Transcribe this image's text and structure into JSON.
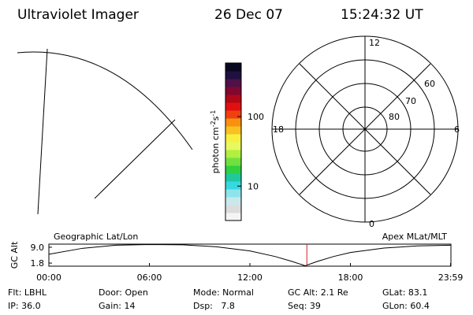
{
  "header": {
    "title": "Ultraviolet Imager",
    "date": "26 Dec 07",
    "time": "15:24:32 UT"
  },
  "colorbar": {
    "label": "photon cm",
    "exp1": "-2",
    "unit2": "s",
    "exp2": "-1",
    "lim": [
      3.2,
      590
    ],
    "log": true,
    "ticks": [
      10,
      100
    ],
    "colors": [
      "#f4f4f4",
      "#dcdcdc",
      "#c8e8ec",
      "#8ee4ec",
      "#38d8e0",
      "#20c8a0",
      "#30d040",
      "#70e040",
      "#b0f040",
      "#e8f860",
      "#f8f040",
      "#f8c020",
      "#f89010",
      "#f04010",
      "#e01010",
      "#b00818",
      "#800830",
      "#501048",
      "#201040",
      "#080820"
    ]
  },
  "polar": {
    "hour_labels": [
      "12",
      "6",
      "0",
      "18"
    ],
    "lat_labels": [
      "60",
      "70",
      "80"
    ]
  },
  "timeline": {
    "left_label": "Geographic Lat/Lon",
    "right_label": "Apex MLat/MLT",
    "ylabel": "GC Alt",
    "xlim": [
      0,
      24
    ],
    "ylim": [
      0.4,
      10.4
    ],
    "yticks": [
      {
        "value": 9,
        "label": "9.0"
      },
      {
        "value": 1.8,
        "label": "1.8"
      }
    ],
    "xticks": [
      {
        "value": 0,
        "label": "00:00"
      },
      {
        "value": 6,
        "label": "06:00"
      },
      {
        "value": 12,
        "label": "12:00"
      },
      {
        "value": 18,
        "label": "18:00"
      },
      {
        "value": 23.98,
        "label": "23:59"
      }
    ],
    "x": [
      0,
      2,
      4,
      6,
      8,
      10,
      12,
      13.5,
      14.5,
      15.3,
      16,
      17,
      18,
      20,
      22,
      24
    ],
    "values": [
      5.8,
      8.5,
      9.9,
      10.2,
      10.1,
      9.2,
      7.3,
      4.8,
      2.6,
      0.6,
      2.5,
      4.8,
      6.6,
      8.6,
      9.6,
      9.9
    ],
    "marker": 15.4,
    "marker_color": "#d02020"
  },
  "status": [
    [
      "Flt: LBHL",
      "IP: 36.0"
    ],
    [
      "Door: Open",
      "Gain: 14"
    ],
    [
      "Mode: Normal",
      "Dsp:   7.8"
    ],
    [
      "GC Alt: 2.1 Re",
      "Seq: 39"
    ],
    [
      "GLat: 83.1",
      "GLon: 60.4"
    ]
  ]
}
